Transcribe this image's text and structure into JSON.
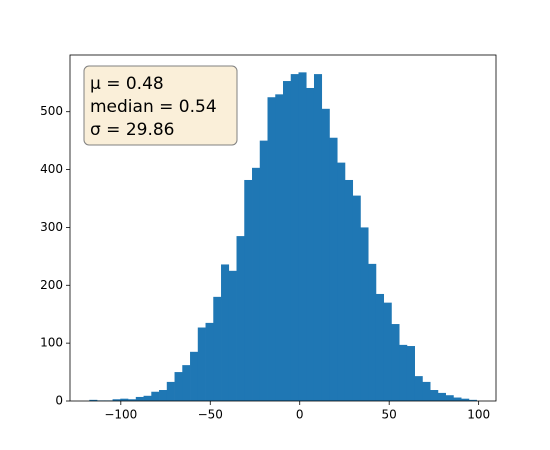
{
  "chart_data": {
    "type": "histogram",
    "bins": [
      -117.6,
      -113.27,
      -108.94,
      -104.61,
      -100.28,
      -95.95,
      -91.62,
      -87.29,
      -82.96,
      -78.63,
      -74.3,
      -69.97,
      -65.64,
      -61.31,
      -56.98,
      -52.65,
      -48.32,
      -43.99,
      -39.66,
      -35.33,
      -31.0,
      -26.67,
      -22.34,
      -18.01,
      -13.68,
      -9.35,
      -5.02,
      -0.69,
      3.64,
      7.97,
      12.3,
      16.63,
      20.96,
      25.29,
      29.62,
      33.95,
      38.28,
      42.61,
      46.94,
      51.27,
      55.6,
      59.93,
      64.26,
      68.59,
      72.92,
      77.25,
      81.58,
      85.91,
      90.24,
      94.57,
      98.9
    ],
    "values": [
      2,
      1,
      1,
      3,
      4,
      3,
      7,
      9,
      16,
      19,
      33,
      50,
      62,
      85,
      127,
      135,
      180,
      236,
      225,
      285,
      382,
      403,
      450,
      525,
      530,
      553,
      565,
      568,
      541,
      565,
      505,
      455,
      412,
      382,
      355,
      300,
      237,
      185,
      170,
      133,
      97,
      95,
      43,
      33,
      19,
      14,
      10,
      6,
      4,
      2
    ],
    "color": "#1f77b4",
    "xlim": [
      -128.4,
      109.7
    ],
    "ylim": [
      0,
      598
    ],
    "xticks": [
      {
        "value": -100,
        "label": "−100"
      },
      {
        "value": -50,
        "label": "−50"
      },
      0,
      50,
      100
    ],
    "yticks": [
      0,
      100,
      200,
      300,
      400,
      500
    ],
    "annotation": [
      "μ = 0.48",
      "median = 0.54",
      "σ = 29.86"
    ]
  }
}
